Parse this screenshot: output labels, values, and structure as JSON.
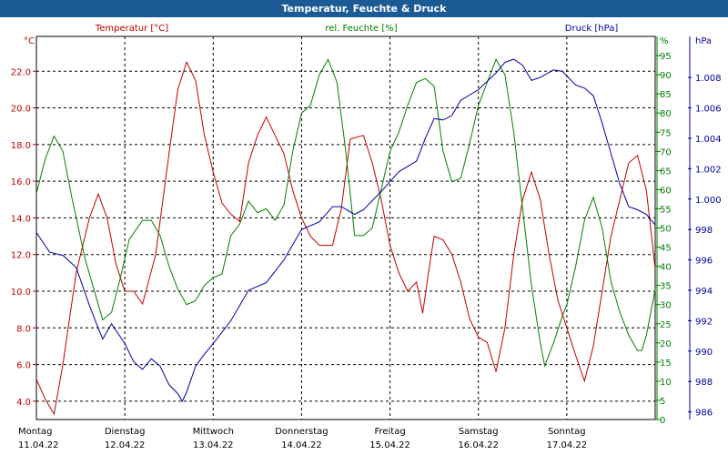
{
  "chart_data": {
    "type": "line",
    "title": "Temperatur, Feuchte & Druck",
    "axes": {
      "left": {
        "label": "°C",
        "ylim": [
          3.0,
          23.9
        ],
        "ticks": [
          "4.0",
          "6.0",
          "8.0",
          "10.0",
          "12.0",
          "14.0",
          "16.0",
          "18.0",
          "20.0",
          "22.0"
        ],
        "tick_values": [
          4,
          6,
          8,
          10,
          12,
          14,
          16,
          18,
          20,
          22
        ],
        "color": "#c00000"
      },
      "mid": {
        "label": "%",
        "ylim": [
          0,
          100
        ],
        "ticks": [
          "0",
          "5",
          "10",
          "15",
          "20",
          "25",
          "30",
          "35",
          "40",
          "45",
          "50",
          "55",
          "60",
          "65",
          "70",
          "75",
          "80",
          "85",
          "90",
          "95"
        ],
        "tick_values": [
          0,
          5,
          10,
          15,
          20,
          25,
          30,
          35,
          40,
          45,
          50,
          55,
          60,
          65,
          70,
          75,
          80,
          85,
          90,
          95
        ],
        "color": "#008000"
      },
      "right": {
        "label": "hPa",
        "ylim": [
          985.5,
          1010.7
        ],
        "ticks": [
          "986",
          "988",
          "990",
          "992",
          "994",
          "996",
          "998",
          "1.000",
          "1.002",
          "1.004",
          "1.006",
          "1.008"
        ],
        "tick_values": [
          986,
          988,
          990,
          992,
          994,
          996,
          998,
          1000,
          1002,
          1004,
          1006,
          1008
        ],
        "color": "#0000a0"
      }
    },
    "x": {
      "range_days": [
        0,
        7
      ],
      "days": [
        {
          "name": "Montag",
          "date": "11.04.22"
        },
        {
          "name": "Dienstag",
          "date": "12.04.22"
        },
        {
          "name": "Mittwoch",
          "date": "13.04.22"
        },
        {
          "name": "Donnerstag",
          "date": "14.04.22"
        },
        {
          "name": "Freitag",
          "date": "15.04.22"
        },
        {
          "name": "Samstag",
          "date": "16.04.22"
        },
        {
          "name": "Sonntag",
          "date": "17.04.22"
        }
      ]
    },
    "grid": true,
    "series": [
      {
        "name": "Temperatur [°C]",
        "axis": "left",
        "color": "#c00000",
        "points": [
          [
            0,
            5.2
          ],
          [
            0.1,
            4.1
          ],
          [
            0.2,
            3.3
          ],
          [
            0.3,
            6
          ],
          [
            0.45,
            11
          ],
          [
            0.6,
            14
          ],
          [
            0.7,
            15.3
          ],
          [
            0.8,
            14
          ],
          [
            0.9,
            11.5
          ],
          [
            1.0,
            10.0
          ],
          [
            1.1,
            10
          ],
          [
            1.2,
            9.3
          ],
          [
            1.35,
            12
          ],
          [
            1.5,
            17.5
          ],
          [
            1.6,
            21
          ],
          [
            1.7,
            22.5
          ],
          [
            1.8,
            21.5
          ],
          [
            1.9,
            18.5
          ],
          [
            2.0,
            16.5
          ],
          [
            2.1,
            14.8
          ],
          [
            2.2,
            14.2
          ],
          [
            2.3,
            13.8
          ],
          [
            2.4,
            17
          ],
          [
            2.5,
            18.5
          ],
          [
            2.6,
            19.5
          ],
          [
            2.7,
            18.5
          ],
          [
            2.8,
            17.5
          ],
          [
            2.9,
            15.5
          ],
          [
            3.0,
            14
          ],
          [
            3.1,
            13
          ],
          [
            3.2,
            12.5
          ],
          [
            3.35,
            12.5
          ],
          [
            3.45,
            14.5
          ],
          [
            3.55,
            18.3
          ],
          [
            3.7,
            18.5
          ],
          [
            3.8,
            17
          ],
          [
            3.9,
            15
          ],
          [
            4.0,
            12.5
          ],
          [
            4.1,
            11
          ],
          [
            4.2,
            10
          ],
          [
            4.3,
            10.5
          ],
          [
            4.37,
            8.8
          ],
          [
            4.45,
            11.5
          ],
          [
            4.5,
            13
          ],
          [
            4.6,
            12.8
          ],
          [
            4.7,
            12
          ],
          [
            4.8,
            10.5
          ],
          [
            4.9,
            8.5
          ],
          [
            5.0,
            7.5
          ],
          [
            5.1,
            7.2
          ],
          [
            5.2,
            5.6
          ],
          [
            5.3,
            8
          ],
          [
            5.4,
            12
          ],
          [
            5.5,
            15
          ],
          [
            5.6,
            16.5
          ],
          [
            5.7,
            15
          ],
          [
            5.8,
            12
          ],
          [
            5.9,
            9.5
          ],
          [
            6.0,
            8
          ],
          [
            6.1,
            6.5
          ],
          [
            6.2,
            5.1
          ],
          [
            6.3,
            7
          ],
          [
            6.4,
            10
          ],
          [
            6.5,
            13
          ],
          [
            6.6,
            15
          ],
          [
            6.7,
            17
          ],
          [
            6.8,
            17.4
          ],
          [
            6.9,
            15.5
          ],
          [
            6.97,
            12.5
          ],
          [
            7.0,
            11.2
          ]
        ]
      },
      {
        "name": "rel. Feuchte [%]",
        "axis": "mid",
        "color": "#008000",
        "points": [
          [
            0,
            59
          ],
          [
            0.1,
            68
          ],
          [
            0.2,
            74
          ],
          [
            0.3,
            70
          ],
          [
            0.4,
            58
          ],
          [
            0.55,
            42
          ],
          [
            0.7,
            30
          ],
          [
            0.75,
            26
          ],
          [
            0.85,
            28
          ],
          [
            0.95,
            37
          ],
          [
            1.05,
            47
          ],
          [
            1.2,
            52
          ],
          [
            1.3,
            52
          ],
          [
            1.4,
            48
          ],
          [
            1.5,
            40
          ],
          [
            1.6,
            34
          ],
          [
            1.7,
            30
          ],
          [
            1.8,
            31
          ],
          [
            1.9,
            35
          ],
          [
            2.0,
            37
          ],
          [
            2.1,
            38
          ],
          [
            2.2,
            48
          ],
          [
            2.3,
            51
          ],
          [
            2.4,
            57
          ],
          [
            2.5,
            54
          ],
          [
            2.6,
            55
          ],
          [
            2.7,
            52
          ],
          [
            2.8,
            56
          ],
          [
            2.9,
            70
          ],
          [
            3.0,
            80
          ],
          [
            3.1,
            82
          ],
          [
            3.2,
            90
          ],
          [
            3.3,
            94
          ],
          [
            3.4,
            88
          ],
          [
            3.5,
            70
          ],
          [
            3.6,
            48
          ],
          [
            3.7,
            48
          ],
          [
            3.8,
            50
          ],
          [
            3.9,
            60
          ],
          [
            4.0,
            70
          ],
          [
            4.1,
            75
          ],
          [
            4.2,
            82
          ],
          [
            4.3,
            88
          ],
          [
            4.4,
            89
          ],
          [
            4.5,
            87
          ],
          [
            4.6,
            70
          ],
          [
            4.7,
            62
          ],
          [
            4.8,
            63
          ],
          [
            4.9,
            72
          ],
          [
            5.0,
            82
          ],
          [
            5.1,
            88
          ],
          [
            5.2,
            94
          ],
          [
            5.3,
            90
          ],
          [
            5.4,
            75
          ],
          [
            5.5,
            55
          ],
          [
            5.6,
            35
          ],
          [
            5.7,
            20
          ],
          [
            5.75,
            14
          ],
          [
            5.85,
            20
          ],
          [
            5.95,
            27
          ],
          [
            6.0,
            30
          ],
          [
            6.1,
            40
          ],
          [
            6.2,
            52
          ],
          [
            6.3,
            58
          ],
          [
            6.4,
            50
          ],
          [
            6.5,
            36
          ],
          [
            6.6,
            28
          ],
          [
            6.7,
            22
          ],
          [
            6.8,
            18
          ],
          [
            6.85,
            18
          ],
          [
            6.9,
            22
          ],
          [
            7.0,
            34
          ]
        ]
      },
      {
        "name": "Druck [hPa]",
        "axis": "right",
        "color": "#0000a0",
        "points": [
          [
            0,
            997.8
          ],
          [
            0.15,
            996.5
          ],
          [
            0.3,
            996.3
          ],
          [
            0.45,
            995.5
          ],
          [
            0.6,
            993
          ],
          [
            0.7,
            991.5
          ],
          [
            0.75,
            990.8
          ],
          [
            0.85,
            991.8
          ],
          [
            1.0,
            990.5
          ],
          [
            1.1,
            989.3
          ],
          [
            1.2,
            988.8
          ],
          [
            1.3,
            989.5
          ],
          [
            1.4,
            989
          ],
          [
            1.5,
            987.8
          ],
          [
            1.6,
            987.2
          ],
          [
            1.65,
            986.7
          ],
          [
            1.7,
            987.3
          ],
          [
            1.8,
            989
          ],
          [
            1.9,
            989.8
          ],
          [
            2.0,
            990.5
          ],
          [
            2.2,
            992
          ],
          [
            2.4,
            994
          ],
          [
            2.6,
            994.5
          ],
          [
            2.8,
            996
          ],
          [
            3.0,
            998
          ],
          [
            3.2,
            998.5
          ],
          [
            3.35,
            999.5
          ],
          [
            3.45,
            999.5
          ],
          [
            3.6,
            999
          ],
          [
            3.7,
            999.3
          ],
          [
            3.9,
            1000.5
          ],
          [
            4.1,
            1001.8
          ],
          [
            4.3,
            1002.5
          ],
          [
            4.4,
            1004
          ],
          [
            4.5,
            1005.3
          ],
          [
            4.6,
            1005.2
          ],
          [
            4.7,
            1005.5
          ],
          [
            4.8,
            1006.5
          ],
          [
            5.0,
            1007.2
          ],
          [
            5.2,
            1008.3
          ],
          [
            5.3,
            1009.0
          ],
          [
            5.4,
            1009.2
          ],
          [
            5.5,
            1008.8
          ],
          [
            5.6,
            1007.8
          ],
          [
            5.7,
            1008
          ],
          [
            5.85,
            1008.5
          ],
          [
            5.95,
            1008.4
          ],
          [
            6.1,
            1007.5
          ],
          [
            6.2,
            1007.3
          ],
          [
            6.3,
            1006.8
          ],
          [
            6.4,
            1005
          ],
          [
            6.5,
            1003
          ],
          [
            6.6,
            1001
          ],
          [
            6.7,
            999.5
          ],
          [
            6.8,
            999.3
          ],
          [
            6.9,
            999
          ],
          [
            7.0,
            998.3
          ]
        ]
      }
    ]
  }
}
